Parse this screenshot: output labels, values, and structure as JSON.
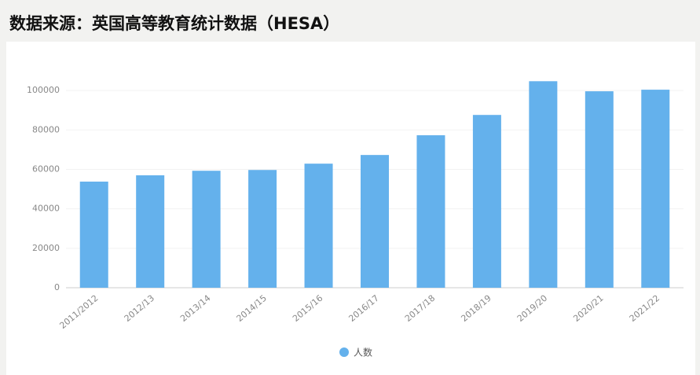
{
  "chart_data": {
    "type": "bar",
    "title": "数据来源：英国高等教育统计数据（HESA）",
    "categories": [
      "2011/2012",
      "2012/13",
      "2013/14",
      "2014/15",
      "2015/16",
      "2016/17",
      "2017/18",
      "2018/19",
      "2019/20",
      "2020/21",
      "2021/22"
    ],
    "series": [
      {
        "name": "人数",
        "color": "#64b1ec",
        "values": [
          53800,
          57000,
          59300,
          59700,
          62900,
          67300,
          77300,
          87600,
          104700,
          99600,
          100400
        ]
      }
    ],
    "ylim": [
      0,
      110000
    ],
    "yticks": [
      0,
      20000,
      40000,
      60000,
      80000,
      100000
    ],
    "grid": true,
    "legend": "bottom"
  }
}
